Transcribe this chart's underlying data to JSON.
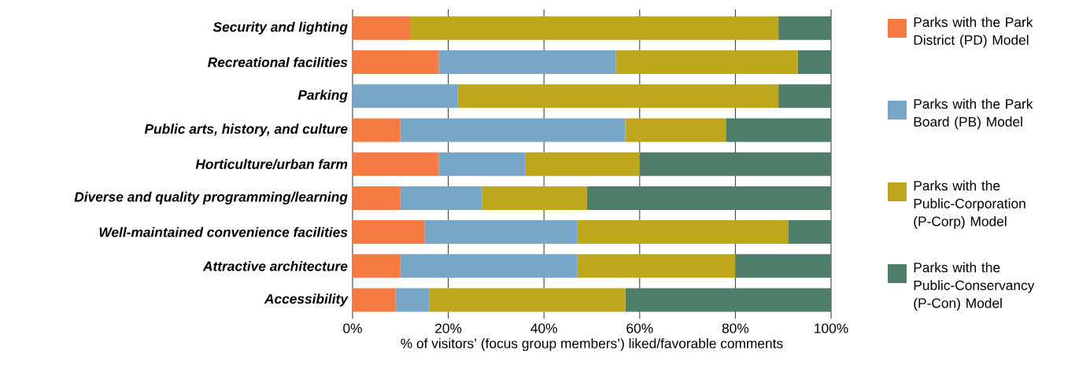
{
  "chart_data": {
    "type": "bar",
    "orientation": "horizontal",
    "stacked": true,
    "xlabel": "% of visitors’ (focus group members’) liked/favorable comments",
    "categories": [
      "Security and lighting",
      "Recreational facilities",
      "Parking",
      "Public arts, history, and culture",
      "Horticulture/urban farm",
      "Diverse and quality programming/learning",
      "Well-maintained convenience facilities",
      "Attractive architecture",
      "Accessibility"
    ],
    "series": [
      {
        "name": "Parks with the Park District (PD) Model",
        "color": "#f47c43",
        "values": [
          12,
          18,
          0,
          10,
          18,
          10,
          15,
          10,
          9
        ]
      },
      {
        "name": "Parks with the Park Board (PB) Model",
        "color": "#78a6c8",
        "values": [
          0,
          37,
          22,
          47,
          18,
          17,
          32,
          37,
          7
        ]
      },
      {
        "name": "Parks with the Public-Corporation (P-Corp) Model",
        "color": "#bfa71d",
        "values": [
          77,
          38,
          67,
          21,
          24,
          22,
          44,
          33,
          41
        ]
      },
      {
        "name": "Parks with the Public-Conservancy (P-Con) Model",
        "color": "#4f7d6b",
        "values": [
          11,
          7,
          11,
          22,
          40,
          51,
          9,
          20,
          43
        ]
      }
    ],
    "xlim": [
      0,
      100
    ],
    "xticks": [
      {
        "value": 0,
        "label": "0%"
      },
      {
        "value": 20,
        "label": "20%"
      },
      {
        "value": 40,
        "label": "40%"
      },
      {
        "value": 60,
        "label": "60%"
      },
      {
        "value": 80,
        "label": "80%"
      },
      {
        "value": 100,
        "label": "100%"
      }
    ],
    "grid": "x",
    "legend": "right"
  }
}
